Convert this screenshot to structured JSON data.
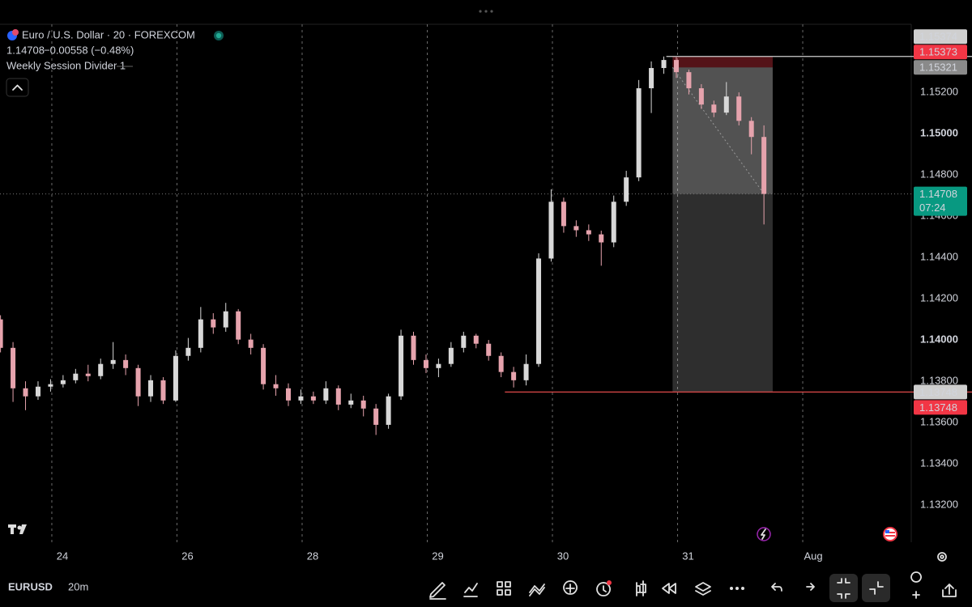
{
  "chart_data": {
    "type": "candlestick",
    "title": "Euro / U.S. Dollar · 20 · FOREXCOM",
    "quote": "1.14708",
    "change": "−0.00558 (−0.48%)",
    "indicator": "Weekly Session Divider 1",
    "symbol": "EURUSD",
    "interval": "20m",
    "countdown": "07:24",
    "up_color": "#d8d8d8",
    "down_color": "#e6a3ad",
    "grid": true,
    "xlim": [
      -0.414,
      6.867
    ],
    "xticks": [
      {
        "value": 0,
        "label": "24"
      },
      {
        "value": 1,
        "label": "26"
      },
      {
        "value": 2,
        "label": "28"
      },
      {
        "value": 3,
        "label": "29"
      },
      {
        "value": 4,
        "label": "30"
      },
      {
        "value": 5,
        "label": "31"
      },
      {
        "value": 6,
        "label": "Aug"
      }
    ],
    "ylim": [
      1.1302,
      1.1553
    ],
    "yticks": [
      {
        "value": 1.132,
        "label": "1.13200"
      },
      {
        "value": 1.134,
        "label": "1.13400"
      },
      {
        "value": 1.136,
        "label": "1.13600"
      },
      {
        "value": 1.138,
        "label": "1.13800"
      },
      {
        "value": 1.14,
        "label": "1.14000"
      },
      {
        "value": 1.142,
        "label": "1.14200"
      },
      {
        "value": 1.144,
        "label": "1.14400"
      },
      {
        "value": 1.146,
        "label": "1.14600"
      },
      {
        "value": 1.148,
        "label": "1.14800"
      },
      {
        "value": 1.15,
        "label": "1.15000"
      },
      {
        "value": 1.152,
        "label": "1.15200"
      }
    ],
    "x": [
      -0.41,
      -0.31,
      -0.21,
      -0.11,
      -0.01,
      0.09,
      0.19,
      0.29,
      0.39,
      0.49,
      0.59,
      0.69,
      0.79,
      0.89,
      0.99,
      1.09,
      1.19,
      1.29,
      1.39,
      1.49,
      1.59,
      1.69,
      1.79,
      1.89,
      1.99,
      2.09,
      2.19,
      2.29,
      2.39,
      2.49,
      2.59,
      2.69,
      2.79,
      2.89,
      2.99,
      3.09,
      3.19,
      3.29,
      3.39,
      3.49,
      3.59,
      3.69,
      3.79,
      3.89,
      3.99,
      4.09,
      4.19,
      4.29,
      4.39,
      4.49,
      4.59,
      4.69,
      4.79,
      4.89,
      4.99,
      5.09,
      5.19,
      5.29,
      5.39,
      5.49,
      5.59,
      5.69
    ],
    "open": [
      1.141,
      1.13962,
      1.13766,
      1.13727,
      1.13774,
      1.13786,
      1.13805,
      1.13837,
      1.13825,
      1.13884,
      1.13903,
      1.13864,
      1.13727,
      1.13805,
      1.13707,
      1.13923,
      1.13962,
      1.141,
      1.14061,
      1.14139,
      1.14002,
      1.13962,
      1.13786,
      1.13766,
      1.13707,
      1.13727,
      1.13707,
      1.13766,
      1.13687,
      1.13707,
      1.13668,
      1.13589,
      1.13727,
      1.14021,
      1.13903,
      1.13864,
      1.13884,
      1.13962,
      1.14021,
      1.13982,
      1.13923,
      1.13845,
      1.13805,
      1.13884,
      1.14395,
      1.1467,
      1.14552,
      1.14532,
      1.14512,
      1.14473,
      1.1467,
      1.14788,
      1.1522,
      1.15318,
      1.15357,
      1.15298,
      1.1522,
      1.15141,
      1.15102,
      1.1518,
      1.15062,
      1.14984
    ],
    "high": [
      1.1412,
      1.1399,
      1.138,
      1.138,
      1.1381,
      1.1383,
      1.1386,
      1.1388,
      1.1391,
      1.1399,
      1.1393,
      1.1388,
      1.1383,
      1.1382,
      1.1395,
      1.1401,
      1.1416,
      1.1413,
      1.1418,
      1.1415,
      1.1403,
      1.1398,
      1.1383,
      1.1379,
      1.1376,
      1.1375,
      1.138,
      1.1378,
      1.1374,
      1.1373,
      1.1369,
      1.1374,
      1.1405,
      1.1404,
      1.1393,
      1.1391,
      1.1399,
      1.1404,
      1.1403,
      1.14,
      1.1394,
      1.1387,
      1.1393,
      1.1442,
      1.1473,
      1.1469,
      1.1458,
      1.1456,
      1.1453,
      1.147,
      1.1482,
      1.1526,
      1.1535,
      1.15374,
      1.1537,
      1.1531,
      1.1524,
      1.1516,
      1.1525,
      1.152,
      1.1508,
      1.1504
    ],
    "low": [
      1.1394,
      1.137,
      1.1366,
      1.1371,
      1.1375,
      1.1377,
      1.1379,
      1.138,
      1.1381,
      1.1386,
      1.1383,
      1.1368,
      1.137,
      1.1369,
      1.137,
      1.139,
      1.1394,
      1.1403,
      1.1404,
      1.1398,
      1.1393,
      1.1376,
      1.1373,
      1.1368,
      1.1369,
      1.1369,
      1.1369,
      1.1366,
      1.1367,
      1.1363,
      1.1354,
      1.1357,
      1.1371,
      1.1388,
      1.1384,
      1.1382,
      1.1387,
      1.1394,
      1.1396,
      1.139,
      1.1382,
      1.1377,
      1.1378,
      1.1387,
      1.1438,
      1.1452,
      1.145,
      1.1448,
      1.1436,
      1.1445,
      1.1465,
      1.1477,
      1.151,
      1.1529,
      1.1527,
      1.1519,
      1.1512,
      1.1508,
      1.1509,
      1.1504,
      1.149,
      1.1456
    ],
    "close": [
      1.13962,
      1.13766,
      1.13727,
      1.13774,
      1.13786,
      1.13805,
      1.13837,
      1.13825,
      1.13884,
      1.13903,
      1.13864,
      1.13727,
      1.13805,
      1.13707,
      1.13923,
      1.13962,
      1.141,
      1.14061,
      1.14139,
      1.14002,
      1.13962,
      1.13786,
      1.13766,
      1.13707,
      1.13727,
      1.13707,
      1.13766,
      1.13687,
      1.13707,
      1.13668,
      1.13589,
      1.13727,
      1.14021,
      1.13903,
      1.13864,
      1.13884,
      1.13962,
      1.14021,
      1.13982,
      1.13923,
      1.13845,
      1.13805,
      1.13884,
      1.14395,
      1.1467,
      1.14552,
      1.14532,
      1.14512,
      1.14473,
      1.1467,
      1.14788,
      1.1522,
      1.15318,
      1.15357,
      1.15298,
      1.1522,
      1.15141,
      1.15102,
      1.1518,
      1.15062,
      1.14984,
      1.14708
    ],
    "position": {
      "stop": 1.15374,
      "entry": 1.15321,
      "target": 1.13748,
      "x_start": 4.96,
      "x_end": 5.76
    },
    "lines": [
      {
        "value": 1.15374,
        "x_start": 4.91,
        "color": "#cfcfcf"
      },
      {
        "value": 1.13748,
        "x_start": 3.62,
        "color": "#e04a4a"
      }
    ],
    "price_tags": [
      {
        "value": 1.15374,
        "bg": "#cfcfcf",
        "fg": "#111111"
      },
      {
        "value": 1.15373,
        "bg": "#f23645",
        "fg": "#ffffff"
      },
      {
        "value": 1.15321,
        "bg": "#8a8a8a",
        "fg": "#ffffff"
      },
      {
        "value": 1.14708,
        "bg": "#089981",
        "fg": "#ffffff"
      },
      {
        "value": 1.13748,
        "bg": "#cfcfcf",
        "fg": "#111111"
      },
      {
        "value": 1.13748,
        "bg": "#f23645",
        "fg": "#ffffff"
      }
    ]
  }
}
